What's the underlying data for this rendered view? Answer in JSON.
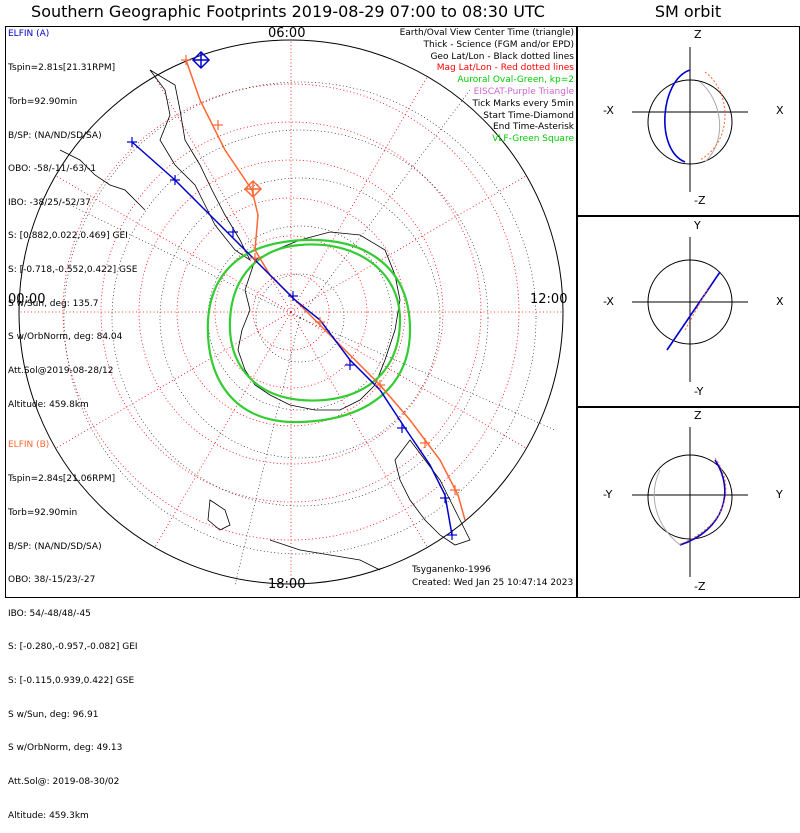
{
  "title": "Southern Geographic Footprints 2019-08-29 07:00 to 08:30 UTC",
  "sm_title": "SM orbit",
  "hour_labels": {
    "top": "06:00",
    "left": "00:00",
    "right": "12:00",
    "bottom": "18:00"
  },
  "elfin_a": {
    "heading": "ELFIN (A)",
    "lines": [
      "Tspin=2.81s[21.31RPM]",
      "Torb=92.90min",
      "B/SP: (NA/ND/SD/SA)",
      "OBO: -58/-11/-63/-1",
      "IBO: -38/25/-52/37",
      "S: [0.882,0.022,0.469] GEI",
      "S: [-0.718,-0.552,0.422] GSE",
      "S w/Sun, deg: 135.7",
      "S w/OrbNorm, deg: 84.04",
      "Att.Sol@2019-08-28/12",
      "Altitude: 459.8km"
    ],
    "color": "#0000cc"
  },
  "elfin_b": {
    "heading": "ELFIN (B)",
    "lines": [
      "Tspin=2.84s[21.06RPM]",
      "Torb=92.90min",
      "B/SP: (NA/ND/SD/SA)",
      "OBO: 38/-15/23/-27",
      "IBO: 54/-48/48/-45",
      "S: [-0.280,-0.957,-0.082] GEI",
      "S: [-0.115,0.939,0.422] GSE",
      "S w/Sun, deg: 96.91",
      "S w/OrbNorm, deg: 49.13",
      "Att.Sol@: 2019-08-30/02",
      "Altitude: 459.3km"
    ],
    "color": "#ff6633"
  },
  "legend": [
    {
      "text": "Earth/Oval View Center Time (triangle)",
      "color": "#000000"
    },
    {
      "text": "Thick - Science (FGM and/or EPD)",
      "color": "#000000"
    },
    {
      "text": "Geo Lat/Lon - Black dotted lines",
      "color": "#000000"
    },
    {
      "text": "Mag Lat/Lon - Red dotted lines",
      "color": "#ff0000"
    },
    {
      "text": "Auroral Oval-Green, kp=2",
      "color": "#00cc00"
    },
    {
      "text": "EISCAT-Purple Triangle",
      "color": "#cc66cc"
    },
    {
      "text": "Tick Marks every 5min",
      "color": "#000000"
    },
    {
      "text": "Start Time-Diamond",
      "color": "#000000"
    },
    {
      "text": "End Time-Asterisk",
      "color": "#000000"
    },
    {
      "text": "VLF-Green Square",
      "color": "#00cc00"
    }
  ],
  "footer": {
    "author": "Tsyganenko-1996",
    "created": "Created: Wed Jan 25 10:47:14 2023"
  },
  "sm_panels": [
    {
      "top": "Z",
      "bottom": "-Z",
      "left": "-X",
      "right": "X"
    },
    {
      "top": "Y",
      "bottom": "-Y",
      "left": "-X",
      "right": "X"
    },
    {
      "top": "Z",
      "bottom": "-Z",
      "left": "-Y",
      "right": "Y"
    }
  ],
  "colors": {
    "map_grid_geo": "#000000",
    "map_grid_mag": "#ff0000",
    "oval": "#33cc33",
    "coast": "#000000",
    "track_a": "#0000cc",
    "track_b": "#ff6633"
  }
}
